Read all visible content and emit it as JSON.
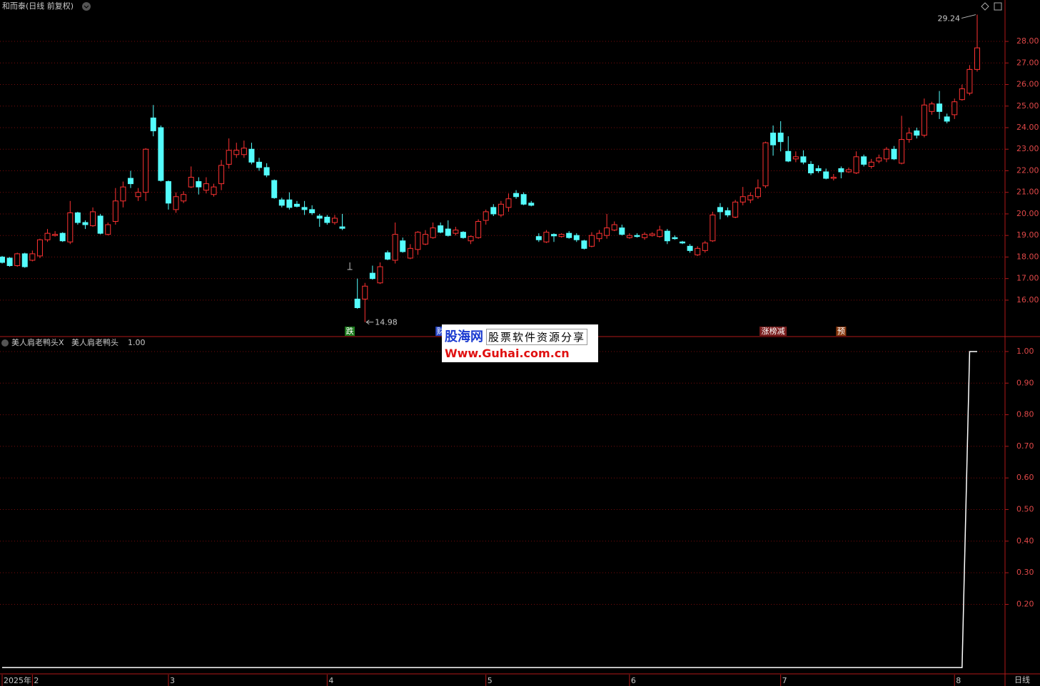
{
  "chart_data": [
    {
      "type": "candlestick",
      "title": "和而泰(日线 前复权)",
      "open": [
        18.0,
        17.95,
        17.6,
        18.15,
        17.85,
        18.05,
        18.8,
        19.0,
        19.1,
        18.7,
        20.05,
        19.6,
        19.45,
        19.9,
        19.05,
        19.65,
        20.6,
        21.65,
        20.8,
        21.0,
        24.45,
        24.0,
        21.5,
        20.2,
        20.6,
        21.25,
        21.5,
        21.1,
        20.9,
        21.4,
        22.3,
        22.75,
        22.75,
        23.0,
        22.4,
        22.15,
        21.55,
        20.65,
        20.65,
        20.45,
        20.3,
        20.2,
        19.9,
        19.85,
        19.6,
        19.4,
        17.42,
        16.05,
        16.05,
        17.25,
        16.8,
        18.2,
        17.85,
        18.75,
        17.95,
        18.35,
        18.6,
        18.9,
        19.45,
        19.3,
        19.1,
        19.15,
        18.75,
        18.9,
        19.7,
        20.3,
        19.95,
        20.3,
        20.95,
        20.9,
        20.5,
        18.95,
        18.7,
        19.05,
        18.95,
        19.1,
        19.0,
        18.75,
        18.5,
        18.85,
        19.0,
        19.25,
        19.35,
        18.9,
        19.0,
        18.9,
        19.0,
        18.95,
        19.2,
        18.9,
        18.7,
        18.5,
        18.1,
        18.3,
        18.75,
        20.3,
        20.15,
        19.85,
        20.55,
        20.65,
        20.8,
        21.3,
        23.75,
        23.75,
        22.9,
        22.55,
        22.65,
        22.3,
        22.1,
        21.95,
        21.65,
        22.1,
        21.95,
        21.9,
        22.65,
        22.2,
        22.45,
        22.55,
        23.0,
        22.35,
        23.45,
        23.85,
        23.65,
        24.75,
        25.1,
        24.5,
        24.6,
        25.3,
        25.6,
        26.7
      ],
      "high": [
        18.05,
        18.0,
        18.2,
        18.2,
        18.3,
        18.85,
        19.3,
        19.2,
        19.15,
        20.6,
        20.1,
        19.7,
        20.3,
        20.0,
        19.6,
        21.2,
        21.5,
        22.0,
        21.2,
        23.05,
        25.05,
        24.1,
        21.55,
        21.0,
        21.05,
        22.2,
        21.7,
        21.7,
        21.4,
        22.5,
        23.5,
        23.3,
        23.4,
        23.3,
        22.6,
        22.35,
        21.6,
        20.75,
        21.0,
        20.6,
        20.6,
        20.4,
        20.0,
        19.95,
        19.95,
        20.0,
        17.75,
        17.0,
        16.8,
        17.6,
        17.75,
        18.3,
        19.6,
        18.9,
        18.6,
        19.2,
        19.25,
        19.6,
        19.6,
        19.7,
        19.4,
        19.2,
        19.0,
        19.75,
        20.2,
        20.45,
        20.6,
        20.95,
        21.1,
        21.0,
        20.6,
        19.1,
        19.25,
        19.1,
        19.1,
        19.2,
        19.1,
        18.8,
        19.15,
        19.25,
        20.0,
        19.65,
        19.5,
        19.1,
        19.1,
        19.15,
        19.15,
        19.45,
        19.3,
        19.0,
        18.75,
        18.6,
        18.5,
        18.75,
        20.1,
        20.5,
        20.3,
        20.65,
        21.25,
        21.0,
        21.6,
        23.35,
        24.1,
        24.3,
        23.6,
        22.9,
        22.95,
        22.45,
        22.25,
        22.1,
        21.85,
        22.2,
        22.15,
        22.9,
        22.75,
        22.55,
        22.75,
        23.1,
        23.15,
        24.55,
        24.0,
        24.0,
        25.35,
        25.2,
        25.7,
        24.65,
        25.35,
        26.0,
        26.9,
        29.24
      ],
      "low": [
        17.7,
        17.55,
        17.55,
        17.5,
        17.8,
        17.95,
        18.7,
        18.95,
        18.7,
        18.6,
        19.5,
        19.3,
        19.4,
        19.05,
        19.0,
        19.5,
        20.3,
        21.2,
        20.6,
        20.6,
        23.6,
        21.5,
        20.2,
        20.05,
        20.5,
        21.2,
        20.9,
        20.95,
        20.8,
        21.1,
        22.1,
        22.6,
        22.6,
        22.3,
        22.0,
        21.7,
        20.7,
        20.3,
        20.2,
        20.3,
        19.95,
        19.95,
        19.4,
        19.5,
        19.5,
        19.25,
        17.42,
        15.6,
        14.98,
        16.95,
        16.75,
        17.85,
        17.7,
        18.2,
        17.9,
        18.1,
        18.55,
        18.85,
        19.1,
        18.95,
        19.0,
        18.85,
        18.6,
        18.85,
        19.5,
        19.9,
        19.85,
        20.1,
        20.7,
        20.4,
        20.35,
        18.7,
        18.65,
        18.7,
        18.9,
        18.85,
        18.7,
        18.35,
        18.45,
        18.7,
        18.85,
        19.2,
        19.0,
        18.85,
        18.9,
        18.8,
        18.95,
        18.9,
        18.6,
        18.8,
        18.6,
        18.2,
        18.05,
        18.2,
        18.7,
        19.75,
        19.85,
        19.8,
        20.4,
        20.5,
        20.7,
        21.2,
        22.7,
        22.9,
        22.4,
        22.4,
        22.3,
        21.8,
        21.9,
        21.6,
        21.55,
        21.65,
        21.9,
        21.85,
        22.2,
        22.1,
        22.35,
        22.4,
        22.5,
        22.3,
        23.3,
        23.5,
        23.55,
        24.6,
        24.4,
        24.2,
        24.4,
        25.25,
        25.5,
        26.6
      ],
      "close": [
        17.75,
        17.6,
        18.15,
        17.55,
        18.15,
        18.8,
        19.1,
        19.05,
        18.75,
        20.05,
        19.6,
        19.5,
        20.1,
        19.1,
        19.5,
        20.6,
        21.25,
        21.4,
        21.0,
        23.0,
        23.85,
        21.55,
        20.5,
        20.8,
        20.9,
        21.7,
        21.25,
        21.4,
        21.25,
        22.25,
        22.95,
        22.95,
        23.05,
        22.4,
        22.15,
        21.8,
        20.75,
        20.4,
        20.3,
        20.35,
        20.2,
        20.05,
        19.8,
        19.6,
        19.8,
        19.33,
        17.42,
        15.65,
        16.65,
        17.0,
        17.55,
        17.9,
        19.05,
        18.25,
        18.4,
        19.15,
        19.05,
        19.35,
        19.15,
        19.0,
        19.25,
        18.9,
        18.95,
        19.65,
        20.1,
        20.0,
        20.45,
        20.7,
        20.8,
        20.45,
        20.4,
        18.8,
        19.15,
        18.98,
        19.05,
        18.9,
        18.8,
        18.4,
        19.0,
        19.1,
        19.35,
        19.5,
        19.05,
        19.0,
        18.95,
        19.05,
        19.07,
        19.25,
        18.75,
        18.85,
        18.65,
        18.3,
        18.4,
        18.65,
        19.95,
        20.1,
        19.95,
        20.55,
        20.8,
        20.85,
        21.2,
        23.3,
        23.2,
        23.35,
        22.45,
        22.65,
        22.4,
        21.9,
        22.0,
        21.65,
        21.7,
        21.95,
        22.05,
        22.65,
        22.3,
        22.4,
        22.6,
        23.0,
        22.55,
        23.45,
        23.75,
        23.65,
        25.05,
        25.1,
        24.75,
        24.3,
        25.2,
        25.8,
        26.7,
        27.7
      ],
      "up_color": "#ff3232",
      "down_color": "#54fcfc",
      "flat_color": "#c0c0c0",
      "ylim": [
        14.31,
        29.92
      ],
      "yticks": [
        {
          "value": 16,
          "label": "16.00"
        },
        {
          "value": 17,
          "label": "17.00"
        },
        {
          "value": 18,
          "label": "18.00"
        },
        {
          "value": 19,
          "label": "19.00"
        },
        {
          "value": 20,
          "label": "20.00"
        },
        {
          "value": 21,
          "label": "21.00"
        },
        {
          "value": 22,
          "label": "22.00"
        },
        {
          "value": 23,
          "label": "23.00"
        },
        {
          "value": 24,
          "label": "24.00"
        },
        {
          "value": 25,
          "label": "25.00"
        },
        {
          "value": 26,
          "label": "26.00"
        },
        {
          "value": 27,
          "label": "27.00"
        },
        {
          "value": 28,
          "label": "28.00"
        }
      ],
      "grid": true,
      "xticks": [
        {
          "value": 0,
          "label": "2025年"
        },
        {
          "value": 4,
          "label": "2"
        },
        {
          "value": 22,
          "label": "3"
        },
        {
          "value": 43,
          "label": "4"
        },
        {
          "value": 64,
          "label": "5"
        },
        {
          "value": 83,
          "label": "6"
        },
        {
          "value": 103,
          "label": "7"
        },
        {
          "value": 126,
          "label": "8"
        }
      ],
      "signals": [
        {
          "index": 46,
          "label": "跌",
          "color": "#1d7a1d"
        },
        {
          "index": 58,
          "label": "财",
          "color": "#2646c8"
        },
        {
          "index": 102,
          "label": "涨榜减",
          "color": "#7a1e1e"
        },
        {
          "index": 111,
          "label": "预",
          "color": "#8a3a10"
        }
      ]
    },
    {
      "type": "line",
      "title": "美人肩老鸭头X",
      "series": [
        {
          "name": "美人肩老鸭头",
          "color": "#ffffff",
          "readout": "1.00",
          "values": [
            0,
            0,
            0,
            0,
            0,
            0,
            0,
            0,
            0,
            0,
            0,
            0,
            0,
            0,
            0,
            0,
            0,
            0,
            0,
            0,
            0,
            0,
            0,
            0,
            0,
            0,
            0,
            0,
            0,
            0,
            0,
            0,
            0,
            0,
            0,
            0,
            0,
            0,
            0,
            0,
            0,
            0,
            0,
            0,
            0,
            0,
            0,
            0,
            0,
            0,
            0,
            0,
            0,
            0,
            0,
            0,
            0,
            0,
            0,
            0,
            0,
            0,
            0,
            0,
            0,
            0,
            0,
            0,
            0,
            0,
            0,
            0,
            0,
            0,
            0,
            0,
            0,
            0,
            0,
            0,
            0,
            0,
            0,
            0,
            0,
            0,
            0,
            0,
            0,
            0,
            0,
            0,
            0,
            0,
            0,
            0,
            0,
            0,
            0,
            0,
            0,
            0,
            0,
            0,
            0,
            0,
            0,
            0,
            0,
            0,
            0,
            0,
            0,
            0,
            0,
            0,
            0,
            0,
            0,
            0,
            0,
            0,
            0,
            0,
            0,
            0,
            0,
            0,
            1,
            1
          ]
        }
      ],
      "ylim": [
        -0.02,
        1.045
      ],
      "yticks": [
        {
          "value": 0.2,
          "label": "0.20"
        },
        {
          "value": 0.3,
          "label": "0.30"
        },
        {
          "value": 0.4,
          "label": "0.40"
        },
        {
          "value": 0.5,
          "label": "0.50"
        },
        {
          "value": 0.6,
          "label": "0.60"
        },
        {
          "value": 0.7,
          "label": "0.70"
        },
        {
          "value": 0.8,
          "label": "0.80"
        },
        {
          "value": 0.9,
          "label": "0.90"
        },
        {
          "value": 1,
          "label": "1.00"
        }
      ],
      "grid": true
    }
  ],
  "period": "日线",
  "watermark": {
    "title": "股海网",
    "tagline": "股票软件资源分享",
    "url": "Www.Guhai.com.cn"
  }
}
